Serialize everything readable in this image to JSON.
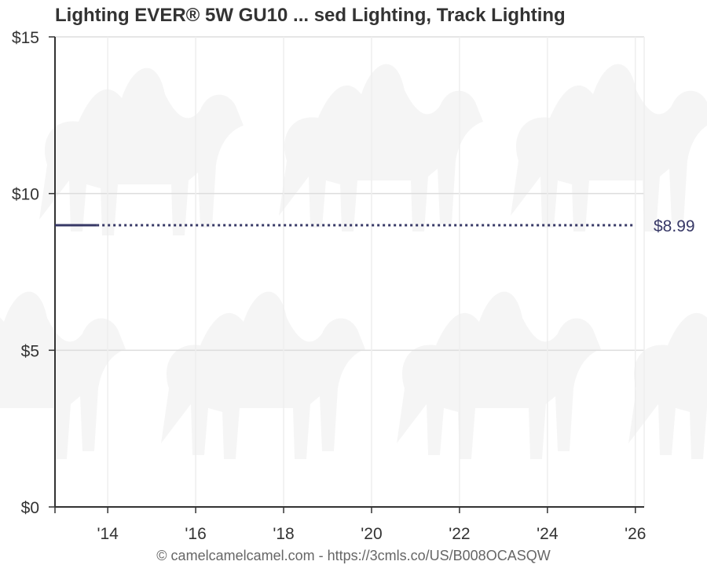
{
  "chart_data": {
    "type": "line",
    "title": "Lighting EVER® 5W GU10 ... sed Lighting, Track Lighting",
    "xlabel": "",
    "ylabel": "",
    "y_ticks": [
      "$0",
      "$5",
      "$10",
      "$15"
    ],
    "y_tick_values": [
      0,
      5,
      10,
      15
    ],
    "ylim": [
      0,
      15
    ],
    "x_ticks": [
      "'14",
      "'16",
      "'18",
      "'20",
      "'22",
      "'24",
      "'26"
    ],
    "x_tick_values": [
      2014,
      2016,
      2018,
      2020,
      2022,
      2024,
      2026
    ],
    "xlim": [
      2012.8,
      2026.2
    ],
    "grid": true,
    "series": [
      {
        "color": "#373866",
        "points": [
          {
            "x": 2012.8,
            "y": 8.99
          },
          {
            "x": 2013.75,
            "y": 8.99
          }
        ],
        "projected_to": 2026.0
      }
    ],
    "last_price_label": "$8.99",
    "footer": "© camelcamelcamel.com - https://3cmls.co/US/B008OCASQW"
  }
}
